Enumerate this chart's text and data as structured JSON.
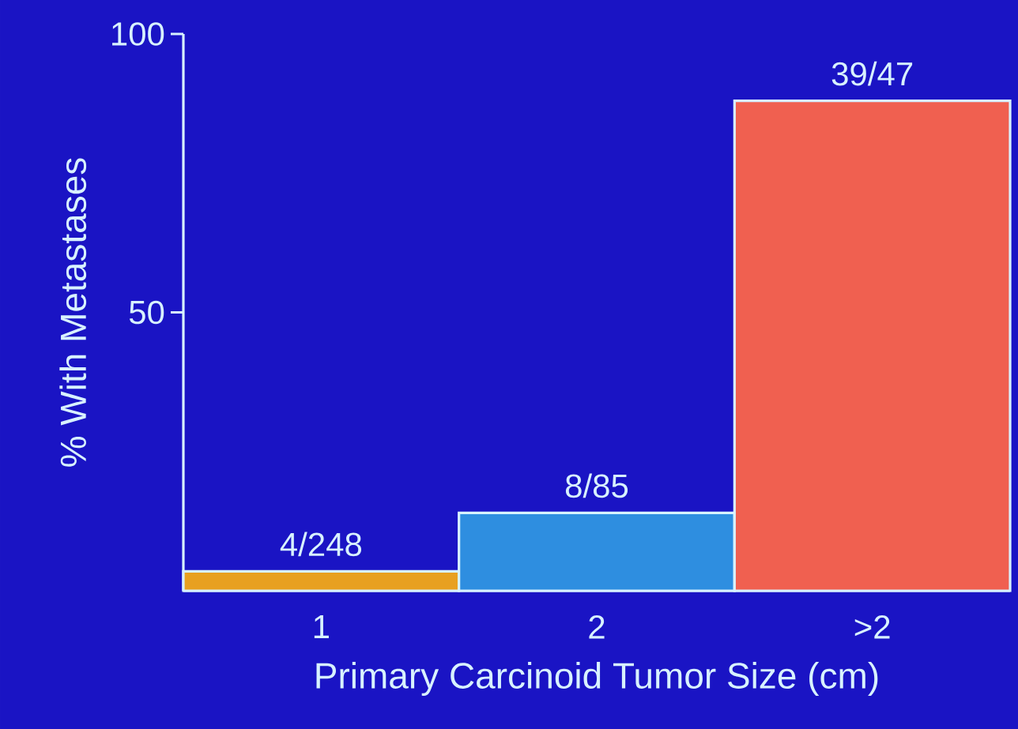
{
  "chart_data": {
    "type": "bar",
    "xlabel": "Primary Carcinoid Tumor Size (cm)",
    "ylabel": "% With Metastases",
    "categories": [
      "1",
      "2",
      ">2"
    ],
    "values": [
      3.5,
      14,
      88
    ],
    "colors": [
      "#e8a020",
      "#2e8ee0",
      "#f06050"
    ],
    "value_labels": [
      "4/248",
      "8/85",
      "39/47"
    ],
    "ylim": [
      0,
      100
    ],
    "yticks": [
      50,
      100
    ]
  }
}
